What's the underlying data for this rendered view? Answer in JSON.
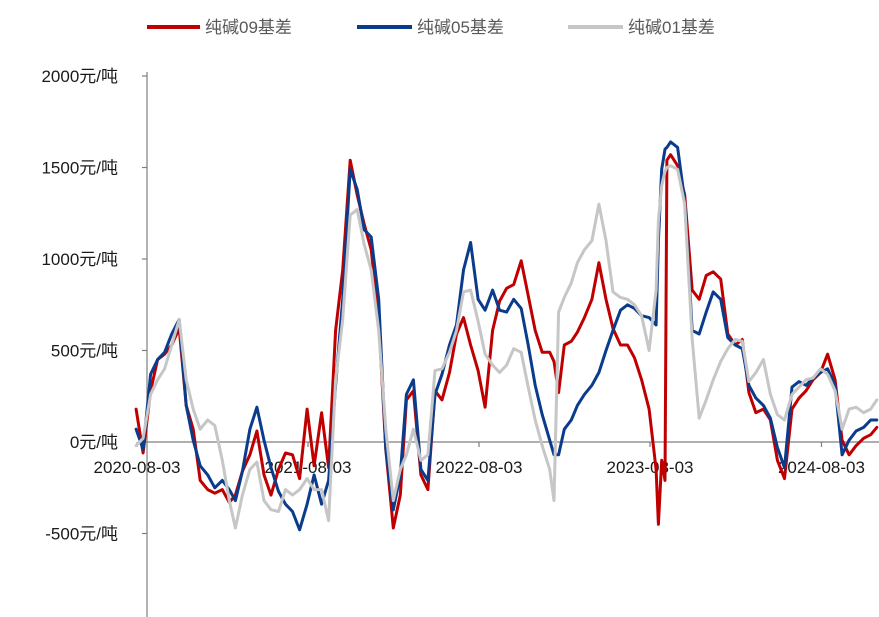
{
  "chart_data": {
    "type": "line",
    "ylim": [
      -1000,
      2000
    ],
    "grid": false,
    "legend_position": "top",
    "y_ticks": [
      {
        "value": 2000,
        "label": "2000元/吨"
      },
      {
        "value": 1500,
        "label": "1500元/吨"
      },
      {
        "value": 1000,
        "label": "1000元/吨"
      },
      {
        "value": 500,
        "label": "500元/吨"
      },
      {
        "value": 0,
        "label": "0元/吨"
      },
      {
        "value": -500,
        "label": "-500元/吨"
      }
    ],
    "x_ticks": [
      "2020-08-03",
      "2021-08-03",
      "2022-08-03",
      "2023-08-03",
      "2024-08-03"
    ],
    "x": [
      "2020-08-01",
      "2020-08-16",
      "2020-09-01",
      "2020-09-16",
      "2020-10-01",
      "2020-10-16",
      "2020-11-01",
      "2020-11-16",
      "2020-12-01",
      "2020-12-16",
      "2021-01-01",
      "2021-01-16",
      "2021-02-01",
      "2021-02-16",
      "2021-03-01",
      "2021-03-16",
      "2021-04-01",
      "2021-04-16",
      "2021-05-01",
      "2021-05-16",
      "2021-06-01",
      "2021-06-16",
      "2021-07-01",
      "2021-07-16",
      "2021-08-01",
      "2021-08-16",
      "2021-09-01",
      "2021-09-16",
      "2021-10-01",
      "2021-10-16",
      "2021-11-01",
      "2021-11-16",
      "2021-12-01",
      "2021-12-16",
      "2022-01-01",
      "2022-01-16",
      "2022-02-01",
      "2022-02-16",
      "2022-03-01",
      "2022-03-16",
      "2022-04-01",
      "2022-04-16",
      "2022-05-01",
      "2022-05-16",
      "2022-06-01",
      "2022-06-16",
      "2022-07-01",
      "2022-07-16",
      "2022-08-01",
      "2022-08-16",
      "2022-09-01",
      "2022-09-16",
      "2022-10-01",
      "2022-10-16",
      "2022-11-01",
      "2022-11-16",
      "2022-12-01",
      "2022-12-16",
      "2023-01-01",
      "2023-01-10",
      "2023-01-20",
      "2023-02-01",
      "2023-02-16",
      "2023-03-01",
      "2023-03-16",
      "2023-04-01",
      "2023-04-16",
      "2023-05-01",
      "2023-05-16",
      "2023-06-01",
      "2023-06-16",
      "2023-07-01",
      "2023-07-16",
      "2023-08-01",
      "2023-08-16",
      "2023-08-21",
      "2023-08-28",
      "2023-09-04",
      "2023-09-08",
      "2023-09-16",
      "2023-10-01",
      "2023-10-16",
      "2023-11-01",
      "2023-11-16",
      "2023-12-01",
      "2023-12-16",
      "2024-01-01",
      "2024-01-16",
      "2024-02-01",
      "2024-02-16",
      "2024-03-01",
      "2024-03-16",
      "2024-04-01",
      "2024-04-16",
      "2024-05-01",
      "2024-05-16",
      "2024-06-01",
      "2024-06-16",
      "2024-07-01",
      "2024-07-16",
      "2024-08-01",
      "2024-08-16",
      "2024-09-01",
      "2024-09-16",
      "2024-10-01",
      "2024-10-16",
      "2024-11-01",
      "2024-11-16",
      "2024-11-29"
    ],
    "series": [
      {
        "name": "纯碱09基差",
        "color": "#C00000",
        "values": [
          180,
          -60,
          280,
          450,
          480,
          530,
          620,
          200,
          70,
          -210,
          -260,
          -280,
          -260,
          -330,
          -290,
          -160,
          -70,
          60,
          -180,
          -290,
          -150,
          -60,
          -70,
          -200,
          180,
          -130,
          160,
          -140,
          610,
          940,
          1540,
          1350,
          1190,
          1050,
          670,
          -40,
          -470,
          -290,
          230,
          280,
          -180,
          -260,
          280,
          230,
          380,
          590,
          680,
          530,
          390,
          190,
          610,
          770,
          840,
          860,
          990,
          800,
          610,
          490,
          490,
          440,
          270,
          530,
          550,
          600,
          680,
          780,
          980,
          780,
          620,
          530,
          530,
          460,
          340,
          180,
          -150,
          -450,
          -100,
          -210,
          1540,
          1570,
          1510,
          1350,
          830,
          780,
          910,
          930,
          890,
          590,
          530,
          560,
          270,
          160,
          180,
          120,
          -100,
          -200,
          180,
          240,
          280,
          340,
          380,
          480,
          340,
          10,
          -70,
          -20,
          20,
          40,
          80
        ]
      },
      {
        "name": "纯碱05基差",
        "color": "#0B3C8C",
        "values": [
          70,
          -40,
          370,
          450,
          490,
          590,
          670,
          200,
          10,
          -130,
          -180,
          -250,
          -210,
          -260,
          -320,
          -160,
          70,
          190,
          10,
          -140,
          -270,
          -340,
          -380,
          -480,
          -340,
          -180,
          -340,
          -210,
          310,
          780,
          1490,
          1380,
          1160,
          1120,
          780,
          -40,
          -370,
          -180,
          260,
          340,
          -150,
          -210,
          260,
          370,
          530,
          640,
          940,
          1090,
          780,
          720,
          830,
          720,
          710,
          780,
          730,
          530,
          310,
          150,
          10,
          -70,
          -70,
          70,
          120,
          200,
          260,
          310,
          380,
          500,
          610,
          720,
          750,
          730,
          690,
          680,
          640,
          1100,
          1490,
          1600,
          1610,
          1640,
          1610,
          1320,
          610,
          590,
          710,
          820,
          780,
          570,
          530,
          510,
          310,
          240,
          200,
          130,
          -30,
          -140,
          300,
          330,
          310,
          350,
          380,
          400,
          310,
          -70,
          10,
          60,
          80,
          120,
          120
        ]
      },
      {
        "name": "纯碱01基差",
        "color": "#C6C6C6",
        "values": [
          -20,
          20,
          260,
          340,
          400,
          530,
          670,
          340,
          180,
          70,
          120,
          90,
          -100,
          -320,
          -470,
          -290,
          -150,
          -110,
          -320,
          -370,
          -380,
          -260,
          -290,
          -260,
          -200,
          -260,
          -260,
          -430,
          340,
          670,
          1240,
          1270,
          1080,
          940,
          610,
          70,
          -320,
          -150,
          -70,
          70,
          -100,
          -70,
          390,
          400,
          490,
          610,
          820,
          830,
          660,
          480,
          420,
          380,
          420,
          510,
          490,
          300,
          120,
          -20,
          -150,
          -320,
          710,
          790,
          870,
          980,
          1050,
          1100,
          1300,
          1100,
          820,
          790,
          780,
          750,
          690,
          500,
          830,
          1210,
          1400,
          1480,
          1500,
          1510,
          1490,
          1300,
          560,
          130,
          230,
          340,
          440,
          510,
          560,
          550,
          330,
          380,
          450,
          260,
          150,
          120,
          260,
          300,
          340,
          350,
          400,
          370,
          280,
          70,
          180,
          190,
          160,
          180,
          230
        ]
      }
    ]
  }
}
